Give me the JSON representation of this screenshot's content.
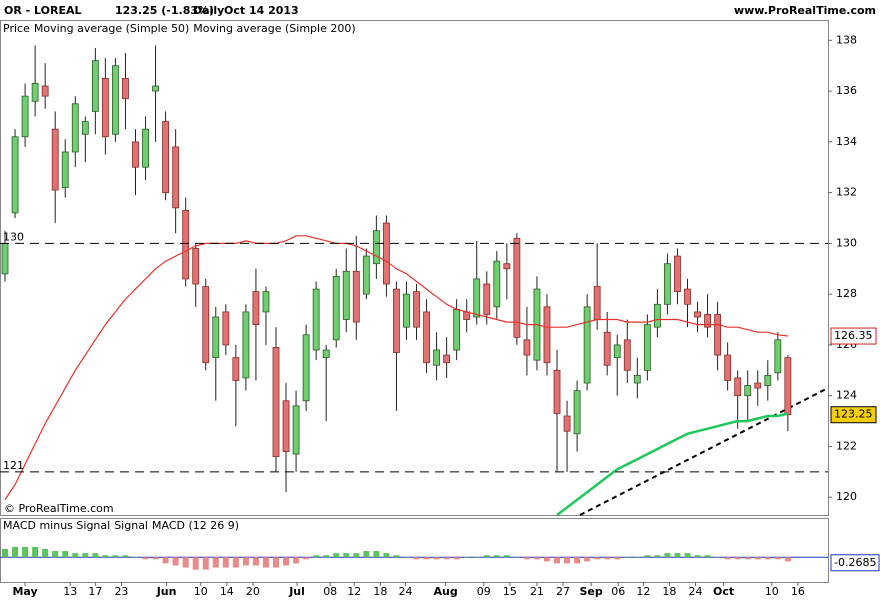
{
  "header": {
    "symbol": "OR - LOREAL",
    "last": "123.25 (-1.83%)",
    "period": "Daily",
    "date": "Oct 14 2013",
    "site": "www.ProRealTime.com"
  },
  "footer": "© ProRealTime.com",
  "chart_data": {
    "type": "candlestick",
    "price_label": "Price",
    "up_color": "#6fcf6f",
    "down_color": "#e07272",
    "open": [
      128.8,
      131.2,
      134.2,
      135.6,
      136.2,
      134.5,
      132.2,
      133.6,
      134.3,
      135.2,
      136.5,
      134.3,
      136.5,
      134,
      133,
      136,
      134.8,
      133.8,
      131.3,
      129.8,
      128.3,
      125.5,
      127.3,
      125.5,
      124.7,
      128.1,
      127.3,
      125.9,
      123.8,
      121.7,
      123.8,
      125.8,
      125.5,
      126.2,
      127,
      128.9,
      128,
      129.2,
      130.8,
      128.2,
      126.7,
      128.1,
      127.3,
      125.2,
      125.6,
      125.8,
      127.3,
      127.1,
      128.4,
      127.5,
      129.2,
      130.2,
      126.2,
      125.4,
      127.5,
      125,
      123.2,
      122.5,
      124.5,
      128.3,
      126.5,
      125.5,
      126.2,
      124.5,
      125,
      126.7,
      127.6,
      129.5,
      128.2,
      127.3,
      127.2,
      127.2,
      125.6,
      124.7,
      124,
      124.5,
      124.4,
      124.9,
      125.5
    ],
    "high": [
      130.5,
      134.5,
      136.3,
      137.8,
      137.1,
      135.2,
      134.1,
      135.8,
      135,
      137.7,
      137.3,
      137.3,
      137.5,
      134.5,
      135,
      137.8,
      135.2,
      134.5,
      131.8,
      130,
      128.6,
      127.5,
      127.6,
      126,
      127.6,
      129,
      128.3,
      126.7,
      124.5,
      124.2,
      126.8,
      128.5,
      126,
      129,
      129.8,
      130.3,
      129.8,
      131.1,
      131.1,
      128.5,
      128.5,
      128.4,
      127.8,
      126.5,
      126.3,
      127.8,
      127.8,
      130.1,
      128.9,
      129.7,
      130,
      130.4,
      127.5,
      128.7,
      128,
      125.8,
      123.8,
      124.6,
      128,
      130,
      127.3,
      126.4,
      127,
      125.5,
      127.2,
      128.2,
      129.6,
      129.8,
      128.6,
      127.7,
      128,
      127.7,
      126.1,
      125,
      125,
      125,
      125.4,
      126.5,
      125.6
    ],
    "low": [
      128.5,
      131,
      133.8,
      135,
      135.3,
      130.8,
      131.8,
      133,
      133.2,
      134.3,
      133.5,
      134,
      134.5,
      131.9,
      132.5,
      134,
      131.7,
      130.4,
      128.3,
      127.5,
      125,
      123.8,
      125.6,
      122.8,
      124.2,
      124.6,
      126,
      121,
      120.2,
      121,
      123.4,
      125.4,
      123,
      125.9,
      126.5,
      126.2,
      127.8,
      128.6,
      127.9,
      123.4,
      126.2,
      126.2,
      124.9,
      124.6,
      124.7,
      125.4,
      126.5,
      126.8,
      126.8,
      127,
      127.8,
      126,
      124.8,
      125,
      124.8,
      121,
      121,
      121.8,
      124.2,
      126.6,
      124.8,
      124,
      124.5,
      123.9,
      124.6,
      126.3,
      127.2,
      127.6,
      126.7,
      126.5,
      126.3,
      125,
      124.2,
      122.7,
      123,
      123.6,
      123.8,
      124.6,
      122.6
    ],
    "close": [
      130,
      134.2,
      135.8,
      136.3,
      135.8,
      132.1,
      133.6,
      135.5,
      134.8,
      137.2,
      134.2,
      137,
      135.7,
      133,
      134.5,
      136.2,
      132,
      131.4,
      128.6,
      128.4,
      125.3,
      127.1,
      126,
      124.6,
      127.3,
      126.8,
      128.1,
      121.6,
      121.8,
      123.6,
      126.4,
      128.2,
      125.8,
      128.7,
      128.9,
      126.9,
      129.5,
      130.5,
      128.4,
      125.7,
      128,
      126.7,
      125.3,
      125.8,
      125.3,
      127.4,
      127,
      128.6,
      127.2,
      129.3,
      129,
      126.3,
      125.6,
      128.2,
      125.3,
      123.3,
      122.6,
      124.2,
      127.5,
      127,
      125.2,
      126,
      125,
      124.8,
      126.8,
      127.6,
      129.2,
      128.1,
      127.6,
      127.1,
      126.7,
      125.6,
      124.6,
      124,
      124.4,
      124.3,
      124.8,
      126.2,
      123.25
    ],
    "series": [
      {
        "name": "Moving average (Simple 50)",
        "color": "#e8302a",
        "values": [
          119.9,
          120.5,
          121.3,
          122.1,
          122.9,
          123.6,
          124.3,
          125,
          125.6,
          126.2,
          126.8,
          127.3,
          127.8,
          128.2,
          128.6,
          129,
          129.3,
          129.5,
          129.7,
          129.9,
          130,
          130,
          130,
          130,
          130.1,
          130,
          130,
          130,
          130.1,
          130.3,
          130.3,
          130.2,
          130.1,
          130,
          130,
          129.9,
          129.7,
          129.5,
          129.3,
          129,
          128.8,
          128.5,
          128.2,
          127.9,
          127.6,
          127.4,
          127.3,
          127.2,
          127.1,
          127,
          126.9,
          126.9,
          126.8,
          126.8,
          126.7,
          126.7,
          126.7,
          126.8,
          126.9,
          127,
          127,
          127,
          126.9,
          126.9,
          126.9,
          127,
          127,
          127,
          126.9,
          126.8,
          126.8,
          126.8,
          126.7,
          126.7,
          126.6,
          126.5,
          126.5,
          126.4,
          126.35
        ]
      },
      {
        "name": "Moving average (Simple 200)",
        "color": "#1ec85a",
        "values": [
          null,
          null,
          null,
          null,
          null,
          null,
          null,
          null,
          null,
          null,
          null,
          null,
          null,
          null,
          null,
          null,
          null,
          null,
          null,
          null,
          null,
          null,
          null,
          null,
          null,
          null,
          null,
          null,
          null,
          null,
          null,
          null,
          null,
          null,
          null,
          null,
          null,
          null,
          null,
          null,
          null,
          null,
          null,
          null,
          null,
          null,
          null,
          null,
          null,
          null,
          null,
          null,
          null,
          null,
          null,
          119.3,
          119.6,
          119.9,
          120.2,
          120.5,
          120.8,
          121.1,
          121.3,
          121.5,
          121.7,
          121.9,
          122.1,
          122.3,
          122.5,
          122.6,
          122.7,
          122.8,
          122.9,
          123,
          123,
          123.1,
          123.2,
          123.2,
          123.3
        ]
      }
    ],
    "levels": [
      130,
      121
    ],
    "xlim": [
      -0.5,
      82
    ],
    "xticks": [
      {
        "value": 2,
        "label": "May"
      },
      {
        "value": 6.5,
        "label": "13"
      },
      {
        "value": 9,
        "label": "17"
      },
      {
        "value": 11.6,
        "label": "23"
      },
      {
        "value": 16.1,
        "label": "Jun"
      },
      {
        "value": 19.5,
        "label": "10"
      },
      {
        "value": 22.1,
        "label": "14"
      },
      {
        "value": 24.7,
        "label": "20"
      },
      {
        "value": 29.1,
        "label": "Jul"
      },
      {
        "value": 32.4,
        "label": "08"
      },
      {
        "value": 34.8,
        "label": "12"
      },
      {
        "value": 37.4,
        "label": "18"
      },
      {
        "value": 39.9,
        "label": "24"
      },
      {
        "value": 43.9,
        "label": "Aug"
      },
      {
        "value": 47.7,
        "label": "09"
      },
      {
        "value": 50.3,
        "label": "15"
      },
      {
        "value": 53,
        "label": "21"
      },
      {
        "value": 55.6,
        "label": "27"
      },
      {
        "value": 58.4,
        "label": "Sep"
      },
      {
        "value": 61.1,
        "label": "06"
      },
      {
        "value": 63.6,
        "label": "12"
      },
      {
        "value": 66.2,
        "label": "18"
      },
      {
        "value": 68.8,
        "label": "24"
      },
      {
        "value": 71.6,
        "label": "Oct"
      },
      {
        "value": 76.4,
        "label": "10"
      },
      {
        "value": 79,
        "label": "16"
      }
    ],
    "ylim": [
      119.3,
      138.8
    ],
    "yticks": [
      120,
      122,
      124,
      126,
      128,
      130,
      132,
      134,
      136,
      138
    ],
    "macd": {
      "legend": [
        {
          "name": "MACD minus Signal",
          "color": "#e07a7a"
        },
        {
          "name": "Signal",
          "color": "#d62020"
        },
        {
          "name": "MACD (12 26 9)",
          "color": "#2030c0"
        }
      ],
      "histogram": [
        0.4,
        0.5,
        0.5,
        0.5,
        0.4,
        0.3,
        0.3,
        0.2,
        0.2,
        0.2,
        0.1,
        0.1,
        0.1,
        0,
        -0.1,
        -0.1,
        -0.3,
        -0.4,
        -0.5,
        -0.6,
        -0.6,
        -0.5,
        -0.5,
        -0.5,
        -0.4,
        -0.4,
        -0.5,
        -0.5,
        -0.4,
        -0.3,
        -0.1,
        0.1,
        0.1,
        0.2,
        0.2,
        0.2,
        0.3,
        0.3,
        0.2,
        0.1,
        0,
        -0.1,
        -0.1,
        -0.1,
        -0.1,
        -0.1,
        0,
        0,
        0.1,
        0.1,
        0.1,
        0,
        -0.1,
        -0.1,
        -0.2,
        -0.3,
        -0.3,
        -0.3,
        -0.2,
        -0.1,
        -0.1,
        -0.1,
        0,
        0,
        0.1,
        0.1,
        0.2,
        0.2,
        0.2,
        0.1,
        0.1,
        0,
        -0.1,
        -0.1,
        -0.1,
        -0.1,
        -0.1,
        -0.1,
        -0.2
      ],
      "ylim": [
        -1.2,
        1.9
      ],
      "last": -0.2685
    }
  }
}
